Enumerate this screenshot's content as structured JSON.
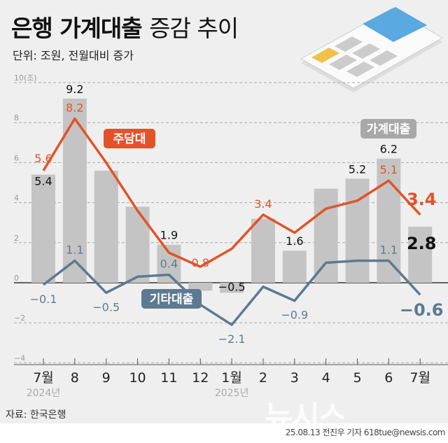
{
  "header": {
    "title_bold": "은행 가계대출",
    "title_light": "증감 추이",
    "subtitle": "단위: 조원, 전월대비 증가"
  },
  "footer": {
    "source": "자료: 한국은행",
    "credit": "25.08.13 전진우 기자 618tue@newsis.com",
    "logo": "뉴시스"
  },
  "colors": {
    "bar": "#c4c4c4",
    "mortgage": "#e2532a",
    "other": "#5d7a90",
    "background": "#efefef"
  },
  "chart_data": {
    "type": "bar+line",
    "categories": [
      "7월",
      "8",
      "9",
      "10",
      "11",
      "12",
      "1월",
      "2",
      "3",
      "4",
      "5",
      "6",
      "7월"
    ],
    "year_labels": [
      {
        "index": 0,
        "label": "2024년"
      },
      {
        "index": 6,
        "label": "2025년"
      }
    ],
    "y_unit_label": "10(조)",
    "yticks": [
      10,
      8,
      6,
      4,
      2,
      0,
      -2,
      -4
    ],
    "ylim": [
      -4,
      10
    ],
    "grid": true,
    "series": [
      {
        "name": "가계대출",
        "type": "bar",
        "values": [
          5.4,
          9.2,
          5.6,
          3.8,
          1.9,
          -0.4,
          -0.5,
          3.2,
          1.6,
          4.7,
          5.2,
          6.2,
          2.8
        ],
        "labels": {
          "0": "5.4",
          "1": "9.2",
          "4": "1.9",
          "6": "-0.5",
          "8": "1.6",
          "10": "5.2",
          "11": "6.2",
          "12": "2.8"
        }
      },
      {
        "name": "주담대",
        "type": "line",
        "values": [
          5.6,
          8.2,
          6.0,
          3.6,
          1.5,
          0.8,
          1.7,
          3.4,
          2.5,
          3.7,
          4.1,
          5.1,
          3.4
        ],
        "labels": {
          "0": "5.6",
          "1": "8.2",
          "5": "0.8",
          "7": "3.4",
          "11": "5.1",
          "12": "3.4"
        }
      },
      {
        "name": "기타대출",
        "type": "line",
        "values": [
          -0.1,
          1.1,
          -0.5,
          0.3,
          0.4,
          -1.1,
          -2.1,
          -0.2,
          -0.9,
          1.0,
          1.1,
          1.1,
          -0.6
        ],
        "labels": {
          "0": "-0.1",
          "1": "1.1",
          "2": "-0.5",
          "4": "0.4",
          "6": "-2.1",
          "8": "-0.9",
          "11": "1.1",
          "12": "-0.6"
        }
      }
    ]
  }
}
